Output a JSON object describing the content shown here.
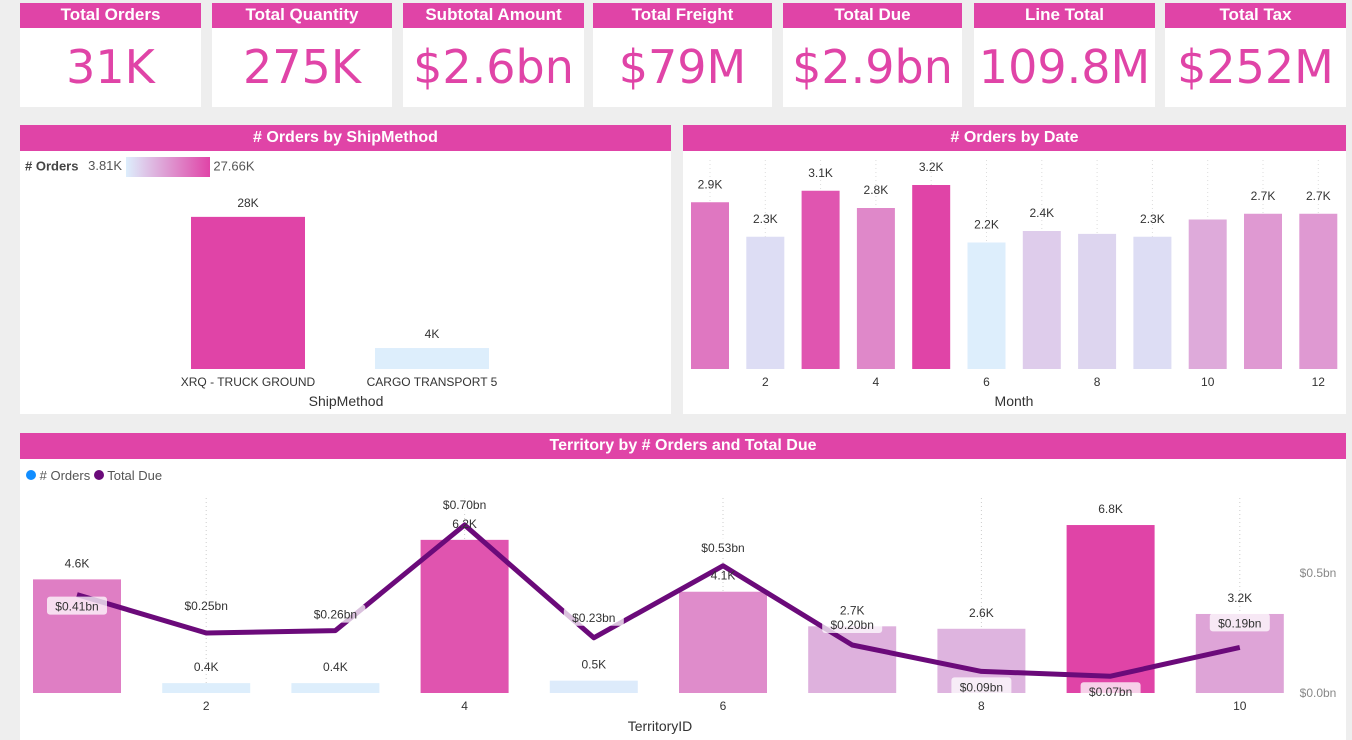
{
  "kpis": [
    {
      "label": "Total Orders",
      "value": "31K"
    },
    {
      "label": "Total Quantity",
      "value": "275K"
    },
    {
      "label": "Subtotal Amount",
      "value": "$2.6bn"
    },
    {
      "label": "Total Freight",
      "value": "$79M"
    },
    {
      "label": "Total Due",
      "value": "$2.9bn"
    },
    {
      "label": "Line Total",
      "value": "109.8M"
    },
    {
      "label": "Total Tax",
      "value": "$252M"
    }
  ],
  "colors": {
    "accent": "#e044a7",
    "low": "#ddeefc",
    "line": "#6b0a7a",
    "orders_legend": "#118dff"
  },
  "chart_data": [
    {
      "type": "bar",
      "title": "# Orders by ShipMethod",
      "xlabel": "ShipMethod",
      "legend": {
        "label": "# Orders",
        "min": "3.81K",
        "max": "27.66K"
      },
      "categories": [
        "XRQ - TRUCK GROUND",
        "CARGO TRANSPORT 5"
      ],
      "values": [
        27.66,
        3.81
      ],
      "labels": [
        "28K",
        "4K"
      ],
      "unit": "K"
    },
    {
      "type": "bar",
      "title": "# Orders by Date",
      "xlabel": "Month",
      "categories": [
        1,
        2,
        3,
        4,
        5,
        6,
        7,
        8,
        9,
        10,
        11,
        12
      ],
      "tick_labels": [
        "",
        "2",
        "",
        "4",
        "",
        "6",
        "",
        "8",
        "",
        "10",
        "",
        "12"
      ],
      "values": [
        2.9,
        2.3,
        3.1,
        2.8,
        3.2,
        2.2,
        2.4,
        2.35,
        2.3,
        2.6,
        2.7,
        2.7
      ],
      "labels": [
        "2.9K",
        "2.3K",
        "3.1K",
        "2.8K",
        "3.2K",
        "2.2K",
        "2.4K",
        "",
        "2.3K",
        "",
        "2.7K",
        "2.7K"
      ],
      "unit": "K"
    },
    {
      "type": "bar+line",
      "title": "Territory by # Orders and Total Due",
      "xlabel": "TerritoryID",
      "series": [
        {
          "name": "# Orders",
          "values": [
            4.6,
            0.4,
            0.4,
            6.2,
            0.5,
            4.1,
            2.7,
            2.6,
            6.8,
            3.2
          ],
          "labels": [
            "4.6K",
            "0.4K",
            "0.4K",
            "6.2K",
            "0.5K",
            "4.1K",
            "2.7K",
            "2.6K",
            "6.8K",
            "3.2K"
          ]
        },
        {
          "name": "Total Due",
          "values": [
            0.41,
            0.25,
            0.26,
            0.7,
            0.23,
            0.53,
            0.2,
            0.09,
            0.07,
            0.19
          ],
          "labels": [
            "$0.41bn",
            "$0.25bn",
            "$0.26bn",
            "$0.70bn",
            "$0.23bn",
            "$0.53bn",
            "$0.20bn",
            "$0.09bn",
            "$0.07bn",
            "$0.19bn"
          ]
        }
      ],
      "categories": [
        1,
        2,
        3,
        4,
        5,
        6,
        7,
        8,
        9,
        10
      ],
      "tick_labels": [
        "",
        "2",
        "",
        "4",
        "",
        "6",
        "",
        "8",
        "",
        "10"
      ],
      "y2_ticks": [
        "$0.0bn",
        "$0.5bn"
      ]
    }
  ]
}
